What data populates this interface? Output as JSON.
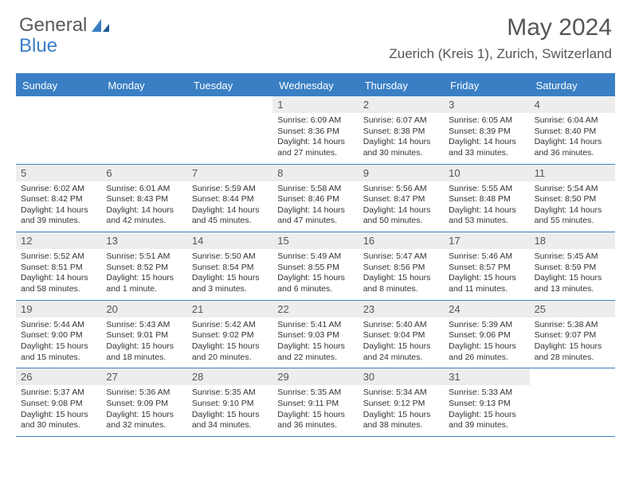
{
  "brand": {
    "word1": "General",
    "word2": "Blue"
  },
  "title": "May 2024",
  "location": "Zuerich (Kreis 1), Zurich, Switzerland",
  "colors": {
    "accent": "#3a7fc4",
    "header_text": "#ffffff",
    "daynum_bg": "#ededed",
    "body_text": "#333333",
    "title_text": "#555555"
  },
  "day_labels": [
    "Sunday",
    "Monday",
    "Tuesday",
    "Wednesday",
    "Thursday",
    "Friday",
    "Saturday"
  ],
  "labels": {
    "sunrise": "Sunrise:",
    "sunset": "Sunset:",
    "daylight": "Daylight:"
  },
  "weeks": [
    [
      null,
      null,
      null,
      {
        "n": "1",
        "sunrise": "6:09 AM",
        "sunset": "8:36 PM",
        "daylight": "14 hours and 27 minutes."
      },
      {
        "n": "2",
        "sunrise": "6:07 AM",
        "sunset": "8:38 PM",
        "daylight": "14 hours and 30 minutes."
      },
      {
        "n": "3",
        "sunrise": "6:05 AM",
        "sunset": "8:39 PM",
        "daylight": "14 hours and 33 minutes."
      },
      {
        "n": "4",
        "sunrise": "6:04 AM",
        "sunset": "8:40 PM",
        "daylight": "14 hours and 36 minutes."
      }
    ],
    [
      {
        "n": "5",
        "sunrise": "6:02 AM",
        "sunset": "8:42 PM",
        "daylight": "14 hours and 39 minutes."
      },
      {
        "n": "6",
        "sunrise": "6:01 AM",
        "sunset": "8:43 PM",
        "daylight": "14 hours and 42 minutes."
      },
      {
        "n": "7",
        "sunrise": "5:59 AM",
        "sunset": "8:44 PM",
        "daylight": "14 hours and 45 minutes."
      },
      {
        "n": "8",
        "sunrise": "5:58 AM",
        "sunset": "8:46 PM",
        "daylight": "14 hours and 47 minutes."
      },
      {
        "n": "9",
        "sunrise": "5:56 AM",
        "sunset": "8:47 PM",
        "daylight": "14 hours and 50 minutes."
      },
      {
        "n": "10",
        "sunrise": "5:55 AM",
        "sunset": "8:48 PM",
        "daylight": "14 hours and 53 minutes."
      },
      {
        "n": "11",
        "sunrise": "5:54 AM",
        "sunset": "8:50 PM",
        "daylight": "14 hours and 55 minutes."
      }
    ],
    [
      {
        "n": "12",
        "sunrise": "5:52 AM",
        "sunset": "8:51 PM",
        "daylight": "14 hours and 58 minutes."
      },
      {
        "n": "13",
        "sunrise": "5:51 AM",
        "sunset": "8:52 PM",
        "daylight": "15 hours and 1 minute."
      },
      {
        "n": "14",
        "sunrise": "5:50 AM",
        "sunset": "8:54 PM",
        "daylight": "15 hours and 3 minutes."
      },
      {
        "n": "15",
        "sunrise": "5:49 AM",
        "sunset": "8:55 PM",
        "daylight": "15 hours and 6 minutes."
      },
      {
        "n": "16",
        "sunrise": "5:47 AM",
        "sunset": "8:56 PM",
        "daylight": "15 hours and 8 minutes."
      },
      {
        "n": "17",
        "sunrise": "5:46 AM",
        "sunset": "8:57 PM",
        "daylight": "15 hours and 11 minutes."
      },
      {
        "n": "18",
        "sunrise": "5:45 AM",
        "sunset": "8:59 PM",
        "daylight": "15 hours and 13 minutes."
      }
    ],
    [
      {
        "n": "19",
        "sunrise": "5:44 AM",
        "sunset": "9:00 PM",
        "daylight": "15 hours and 15 minutes."
      },
      {
        "n": "20",
        "sunrise": "5:43 AM",
        "sunset": "9:01 PM",
        "daylight": "15 hours and 18 minutes."
      },
      {
        "n": "21",
        "sunrise": "5:42 AM",
        "sunset": "9:02 PM",
        "daylight": "15 hours and 20 minutes."
      },
      {
        "n": "22",
        "sunrise": "5:41 AM",
        "sunset": "9:03 PM",
        "daylight": "15 hours and 22 minutes."
      },
      {
        "n": "23",
        "sunrise": "5:40 AM",
        "sunset": "9:04 PM",
        "daylight": "15 hours and 24 minutes."
      },
      {
        "n": "24",
        "sunrise": "5:39 AM",
        "sunset": "9:06 PM",
        "daylight": "15 hours and 26 minutes."
      },
      {
        "n": "25",
        "sunrise": "5:38 AM",
        "sunset": "9:07 PM",
        "daylight": "15 hours and 28 minutes."
      }
    ],
    [
      {
        "n": "26",
        "sunrise": "5:37 AM",
        "sunset": "9:08 PM",
        "daylight": "15 hours and 30 minutes."
      },
      {
        "n": "27",
        "sunrise": "5:36 AM",
        "sunset": "9:09 PM",
        "daylight": "15 hours and 32 minutes."
      },
      {
        "n": "28",
        "sunrise": "5:35 AM",
        "sunset": "9:10 PM",
        "daylight": "15 hours and 34 minutes."
      },
      {
        "n": "29",
        "sunrise": "5:35 AM",
        "sunset": "9:11 PM",
        "daylight": "15 hours and 36 minutes."
      },
      {
        "n": "30",
        "sunrise": "5:34 AM",
        "sunset": "9:12 PM",
        "daylight": "15 hours and 38 minutes."
      },
      {
        "n": "31",
        "sunrise": "5:33 AM",
        "sunset": "9:13 PM",
        "daylight": "15 hours and 39 minutes."
      },
      null
    ]
  ]
}
